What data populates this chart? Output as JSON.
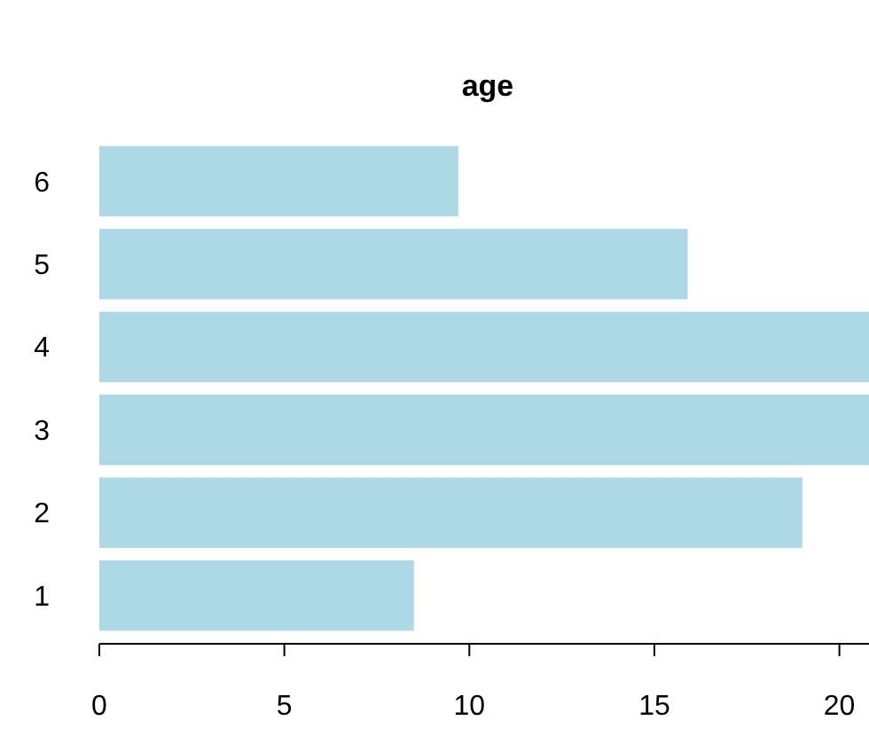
{
  "chart_data": {
    "type": "bar",
    "title": "age",
    "orientation": "horizontal",
    "categories": [
      "6",
      "5",
      "4",
      "3",
      "2",
      "1"
    ],
    "values": [
      9.7,
      15.9,
      20.8,
      20.8,
      19.0,
      8.5
    ],
    "color": "#add8e6",
    "xlim": [
      0,
      20.8
    ],
    "xticks": [
      0,
      5,
      10,
      15,
      20
    ],
    "grid": false
  }
}
